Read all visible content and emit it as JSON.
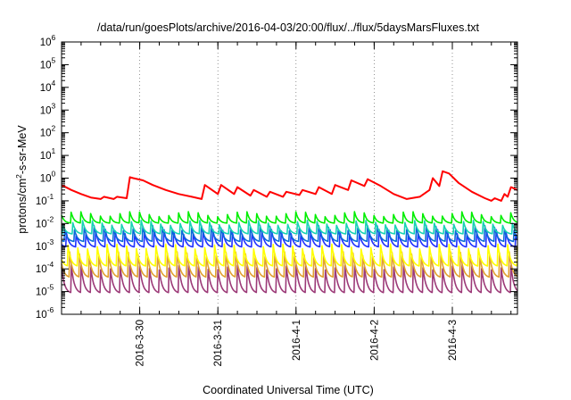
{
  "chart_data": {
    "type": "line",
    "title": "/data/run/goesPlots/archive/2016-04-03/20:00/flux/../flux/5daysMarsFluxes.txt",
    "xlabel": "Coordinated Universal Time (UTC)",
    "ylabel": {
      "pre": "protons/cm",
      "sup": "2",
      "post": "-s-sr-MeV"
    },
    "yscale": "log",
    "ylim": [
      1e-06,
      1000000.0
    ],
    "ytick_labels": [
      {
        "base": "10",
        "exp": "-6"
      },
      {
        "base": "10",
        "exp": "-5"
      },
      {
        "base": "10",
        "exp": "-4"
      },
      {
        "base": "10",
        "exp": "-3"
      },
      {
        "base": "10",
        "exp": "-2"
      },
      {
        "base": "10",
        "exp": "-1"
      },
      {
        "base": "10",
        "exp": "0"
      },
      {
        "base": "10",
        "exp": "1"
      },
      {
        "base": "10",
        "exp": "2"
      },
      {
        "base": "10",
        "exp": "3"
      },
      {
        "base": "10",
        "exp": "4"
      },
      {
        "base": "10",
        "exp": "5"
      },
      {
        "base": "10",
        "exp": "6"
      }
    ],
    "xlim": [
      "2016-03-29T00:00",
      "2016-04-03T20:00"
    ],
    "xtick_labels": [
      "2016-3-30",
      "2016-3-31",
      "2016-4-1",
      "2016-4-2",
      "2016-4-3"
    ],
    "xticks": [
      "2016-03-30T00:00",
      "2016-03-31T00:00",
      "2016-04-01T00:00",
      "2016-04-02T00:00",
      "2016-04-03T00:00"
    ],
    "legend": "none",
    "grid": "dotted",
    "series": [
      {
        "color": "#ff0000",
        "x": [
          "2016-03-29T00:00",
          "2016-03-29T03:00",
          "2016-03-29T06:00",
          "2016-03-29T09:00",
          "2016-03-29T12:00",
          "2016-03-29T13:00",
          "2016-03-29T16:00",
          "2016-03-29T17:00",
          "2016-03-29T20:00",
          "2016-03-29T21:00",
          "2016-03-29T22:00",
          "2016-03-30T01:00",
          "2016-03-30T04:00",
          "2016-03-30T08:00",
          "2016-03-30T12:00",
          "2016-03-30T16:00",
          "2016-03-30T19:00",
          "2016-03-30T20:00",
          "2016-03-31T00:00",
          "2016-03-31T01:00",
          "2016-03-31T05:00",
          "2016-03-31T06:00",
          "2016-03-31T10:00",
          "2016-03-31T11:00",
          "2016-03-31T15:00",
          "2016-03-31T16:00",
          "2016-03-31T20:00",
          "2016-03-31T21:00",
          "2016-04-01T01:00",
          "2016-04-01T02:00",
          "2016-04-01T06:00",
          "2016-04-01T07:00",
          "2016-04-01T11:00",
          "2016-04-01T12:00",
          "2016-04-01T16:00",
          "2016-04-01T17:00",
          "2016-04-01T21:00",
          "2016-04-01T22:00",
          "2016-04-02T02:00",
          "2016-04-02T06:00",
          "2016-04-02T10:00",
          "2016-04-02T14:00",
          "2016-04-02T17:00",
          "2016-04-02T18:00",
          "2016-04-02T20:00",
          "2016-04-02T21:00",
          "2016-04-02T23:00",
          "2016-04-03T02:00",
          "2016-04-03T06:00",
          "2016-04-03T10:00",
          "2016-04-03T12:00",
          "2016-04-03T13:00",
          "2016-04-03T15:00",
          "2016-04-03T16:00",
          "2016-04-03T17:00",
          "2016-04-03T18:00",
          "2016-04-03T20:00"
        ],
        "y": [
          0.5,
          0.3,
          0.2,
          0.14,
          0.12,
          0.15,
          0.12,
          0.15,
          0.13,
          1.1,
          1.0,
          0.8,
          0.5,
          0.3,
          0.2,
          0.15,
          0.12,
          0.5,
          0.2,
          0.5,
          0.2,
          0.4,
          0.17,
          0.3,
          0.15,
          0.25,
          0.15,
          0.25,
          0.18,
          0.3,
          0.2,
          0.4,
          0.2,
          0.5,
          0.3,
          0.8,
          0.45,
          0.9,
          0.45,
          0.2,
          0.12,
          0.15,
          0.3,
          1.0,
          0.45,
          2.0,
          1.6,
          0.6,
          0.25,
          0.13,
          0.1,
          0.13,
          0.1,
          0.2,
          0.15,
          0.4,
          0.3
        ]
      },
      {
        "color": "#00ee00",
        "base": 0.014,
        "amp": 1.9
      },
      {
        "color": "#19d3b4",
        "base": 0.005,
        "amp": 2.2
      },
      {
        "color": "#0b6bd8",
        "base": 0.0025,
        "amp": 2.6
      },
      {
        "color": "#2030ff",
        "base": 0.0015,
        "amp": 2.9
      },
      {
        "color": "#ffff00",
        "base": 0.00025,
        "amp": 4.0
      },
      {
        "color": "#e0a030",
        "base": 9e-05,
        "amp": 5.0
      },
      {
        "color": "#9c3a78",
        "base": 2e-05,
        "amp": 6.0
      }
    ],
    "pulse_period_hours": 3
  }
}
